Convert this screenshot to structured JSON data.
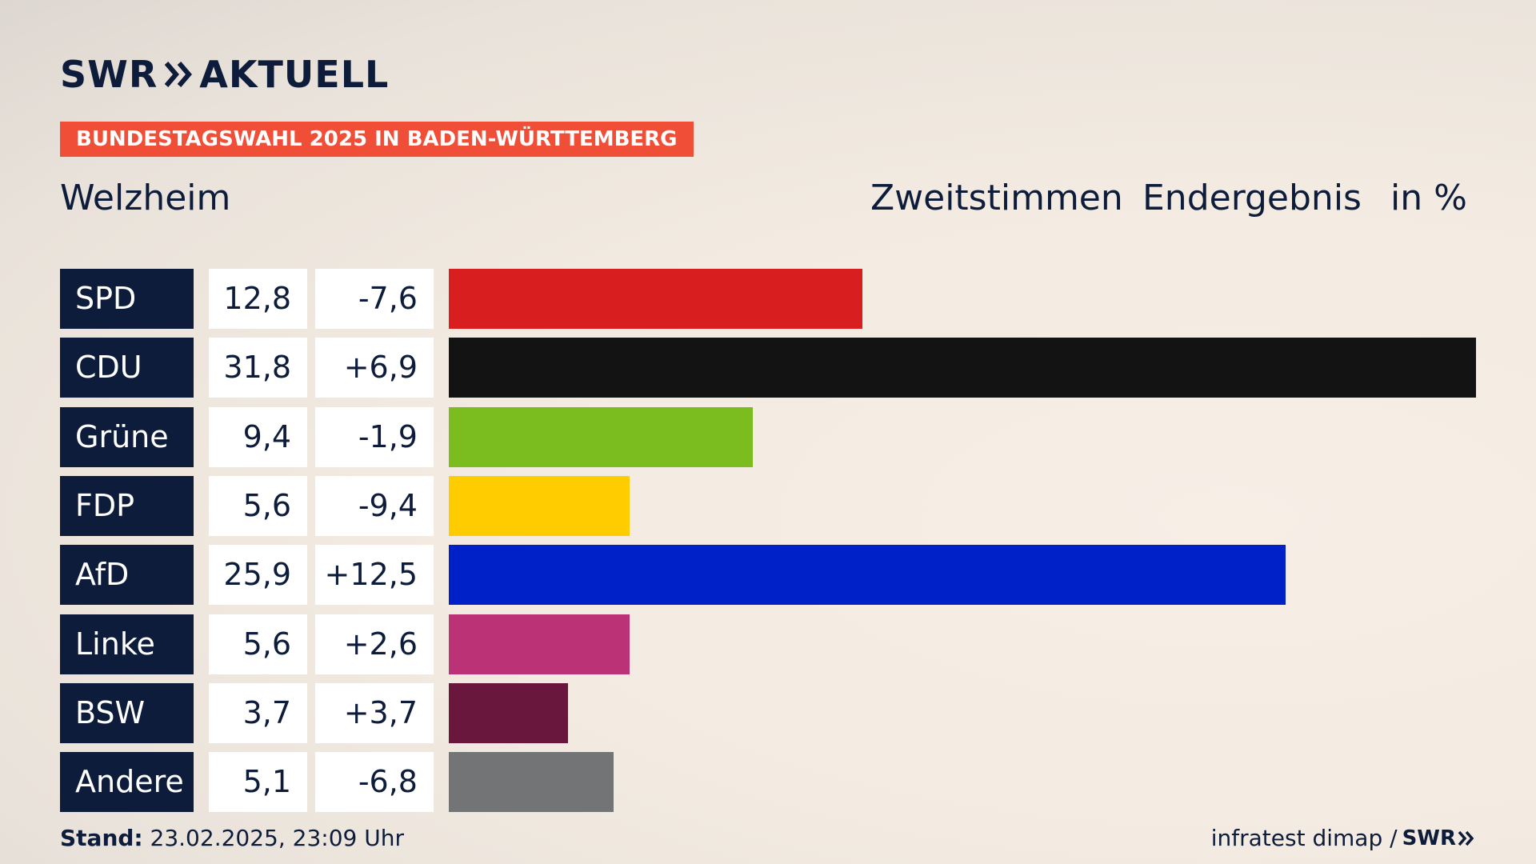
{
  "header": {
    "logo_left": "SWR",
    "logo_right": "AKTUELL",
    "banner": "BUNDESTAGSWAHL 2025 IN BADEN-WÜRTTEMBERG",
    "place": "Welzheim",
    "col_type": "Zweitstimmen",
    "col_status": "Endergebnis",
    "col_unit": "in %"
  },
  "footer": {
    "stand_label": "Stand:",
    "stand_value": "23.02.2025, 23:09 Uhr",
    "source": "infratest dimap /",
    "source_logo": "SWR"
  },
  "chart_data": {
    "type": "bar",
    "orientation": "horizontal",
    "categories": [
      "SPD",
      "CDU",
      "Grüne",
      "FDP",
      "AfD",
      "Linke",
      "BSW",
      "Andere"
    ],
    "values": [
      12.8,
      31.8,
      9.4,
      5.6,
      25.9,
      5.6,
      3.7,
      5.1
    ],
    "value_labels": [
      "12,8",
      "31,8",
      "9,4",
      "5,6",
      "25,9",
      "5,6",
      "3,7",
      "5,1"
    ],
    "diff_labels": [
      "-7,6",
      "+6,9",
      "-1,9",
      "-9,4",
      "+12,5",
      "+2,6",
      "+3,7",
      "-6,8"
    ],
    "colors": [
      "#d81e1e",
      "#131313",
      "#7bbd1e",
      "#ffcc00",
      "#0020c8",
      "#bc3276",
      "#69173c",
      "#737476"
    ],
    "xlim": [
      0,
      31.8
    ]
  }
}
